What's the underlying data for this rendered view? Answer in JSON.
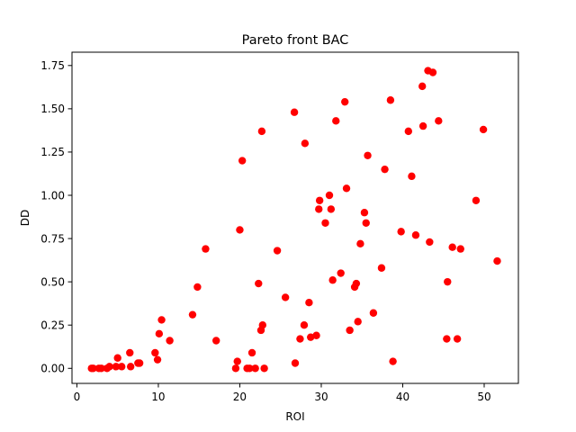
{
  "chart_data": {
    "type": "scatter",
    "title": "Pareto front BAC",
    "xlabel": "ROI",
    "ylabel": "DD",
    "xlim": [
      -0.6,
      54.2
    ],
    "ylim": [
      -0.087,
      1.827
    ],
    "x_ticks": [
      0,
      10,
      20,
      30,
      40,
      50
    ],
    "x_tick_labels": [
      "0",
      "10",
      "20",
      "30",
      "40",
      "50"
    ],
    "y_ticks": [
      0.0,
      0.25,
      0.5,
      0.75,
      1.0,
      1.25,
      1.5,
      1.75
    ],
    "y_tick_labels": [
      "0.00",
      "0.25",
      "0.50",
      "0.75",
      "1.00",
      "1.25",
      "1.50",
      "1.75"
    ],
    "grid": false,
    "legend": false,
    "marker_color": "#ff0000",
    "points": [
      [
        1.8,
        0.0
      ],
      [
        2.0,
        0.0
      ],
      [
        2.7,
        0.0
      ],
      [
        3.0,
        0.0
      ],
      [
        3.7,
        0.0
      ],
      [
        4.0,
        0.01
      ],
      [
        4.8,
        0.01
      ],
      [
        5.0,
        0.06
      ],
      [
        5.5,
        0.01
      ],
      [
        6.5,
        0.09
      ],
      [
        6.6,
        0.01
      ],
      [
        7.5,
        0.03
      ],
      [
        7.7,
        0.03
      ],
      [
        9.6,
        0.09
      ],
      [
        9.9,
        0.05
      ],
      [
        10.1,
        0.2
      ],
      [
        10.4,
        0.28
      ],
      [
        11.4,
        0.16
      ],
      [
        14.2,
        0.31
      ],
      [
        14.8,
        0.47
      ],
      [
        15.8,
        0.69
      ],
      [
        17.1,
        0.16
      ],
      [
        19.5,
        0.0
      ],
      [
        19.7,
        0.04
      ],
      [
        20.0,
        0.8
      ],
      [
        20.3,
        1.2
      ],
      [
        20.9,
        0.0
      ],
      [
        21.2,
        0.0
      ],
      [
        21.5,
        0.09
      ],
      [
        21.9,
        0.0
      ],
      [
        22.3,
        0.49
      ],
      [
        22.6,
        0.22
      ],
      [
        22.7,
        1.37
      ],
      [
        22.8,
        0.25
      ],
      [
        23.0,
        0.0
      ],
      [
        24.6,
        0.68
      ],
      [
        25.6,
        0.41
      ],
      [
        26.7,
        1.48
      ],
      [
        26.8,
        0.03
      ],
      [
        27.4,
        0.17
      ],
      [
        27.9,
        0.25
      ],
      [
        28.0,
        1.3
      ],
      [
        28.5,
        0.38
      ],
      [
        28.7,
        0.18
      ],
      [
        29.4,
        0.19
      ],
      [
        29.7,
        0.92
      ],
      [
        29.8,
        0.97
      ],
      [
        30.5,
        0.84
      ],
      [
        31.0,
        1.0
      ],
      [
        31.2,
        0.92
      ],
      [
        31.4,
        0.51
      ],
      [
        31.8,
        1.43
      ],
      [
        32.4,
        0.55
      ],
      [
        32.9,
        1.54
      ],
      [
        33.1,
        1.04
      ],
      [
        33.5,
        0.22
      ],
      [
        34.1,
        0.47
      ],
      [
        34.3,
        0.49
      ],
      [
        34.5,
        0.27
      ],
      [
        34.8,
        0.72
      ],
      [
        35.3,
        0.9
      ],
      [
        35.5,
        0.84
      ],
      [
        35.7,
        1.23
      ],
      [
        36.4,
        0.32
      ],
      [
        37.4,
        0.58
      ],
      [
        37.8,
        1.15
      ],
      [
        38.5,
        1.55
      ],
      [
        38.8,
        0.04
      ],
      [
        39.8,
        0.79
      ],
      [
        40.7,
        1.37
      ],
      [
        41.1,
        1.11
      ],
      [
        41.6,
        0.77
      ],
      [
        42.4,
        1.63
      ],
      [
        42.5,
        1.4
      ],
      [
        43.1,
        1.72
      ],
      [
        43.3,
        0.73
      ],
      [
        43.7,
        1.71
      ],
      [
        44.4,
        1.43
      ],
      [
        45.4,
        0.17
      ],
      [
        45.5,
        0.5
      ],
      [
        46.1,
        0.7
      ],
      [
        46.7,
        0.17
      ],
      [
        47.1,
        0.69
      ],
      [
        49.0,
        0.97
      ],
      [
        49.9,
        1.38
      ],
      [
        51.6,
        0.62
      ]
    ]
  }
}
